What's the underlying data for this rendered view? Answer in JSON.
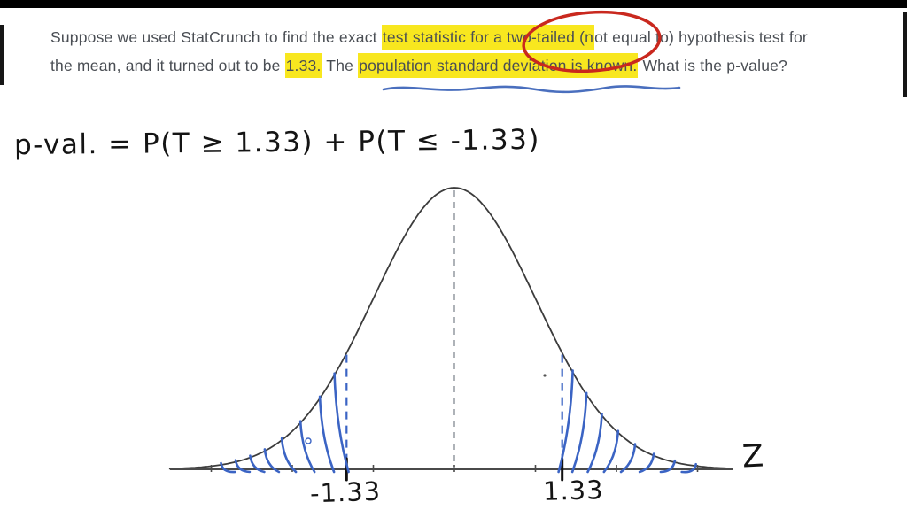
{
  "frame": {
    "letterbox_color": "#000000"
  },
  "question": {
    "text_color": "#4a4e54",
    "highlight_color": "#f8e71f",
    "line1": [
      {
        "text": "Suppose we used StatCrunch to find the exact "
      },
      {
        "text": "test statistic for a two-tailed (n",
        "highlight": true
      },
      {
        "text": "ot equal to) hypothesis test for"
      }
    ],
    "line2": [
      {
        "text": "the mean, and it turned out to be "
      },
      {
        "text": "1.33.",
        "highlight": true
      },
      {
        "text": " The "
      },
      {
        "text": "population standard deviation is known.",
        "highlight": true,
        "underline": true
      },
      {
        "text": " What is the p-value?"
      }
    ]
  },
  "annotations": {
    "red_circle_color": "#c9281e",
    "red_circle_around": "two-tailed",
    "blue_underline_color": "#4a6fbe",
    "blue_underline_under": "population standard deviation is known"
  },
  "handwriting": {
    "equation": "p-val. = P(T ≥ 1.33) + P(T ≤ -1.33)",
    "ink_color": "#141414"
  },
  "chart_data": {
    "type": "line",
    "title": "hand-drawn standard normal (Z) curve for two-tailed test",
    "curve": "y = exp(-z^2/2)",
    "xlabel": "Z",
    "ylabel": "",
    "x_range": [
      -3.5,
      3.5
    ],
    "tick_values": [
      -3,
      -2,
      -1,
      0,
      1,
      2,
      3
    ],
    "test_statistic": 1.33,
    "critical_values": [
      -1.33,
      1.33
    ],
    "critical_labels": [
      "-1.33",
      "1.33"
    ],
    "center_dashed_line_at": 0,
    "shaded_regions": [
      [
        -3.5,
        -1.33
      ],
      [
        1.33,
        3.5
      ]
    ],
    "shading_style": "blue diagonal hatching in both tails",
    "curve_color": "#3c3c3c",
    "axis_color": "#4a4a4a",
    "center_line_color": "#9aa0a6",
    "hatch_color": "#3b64c4",
    "grid": false,
    "legend": false
  }
}
